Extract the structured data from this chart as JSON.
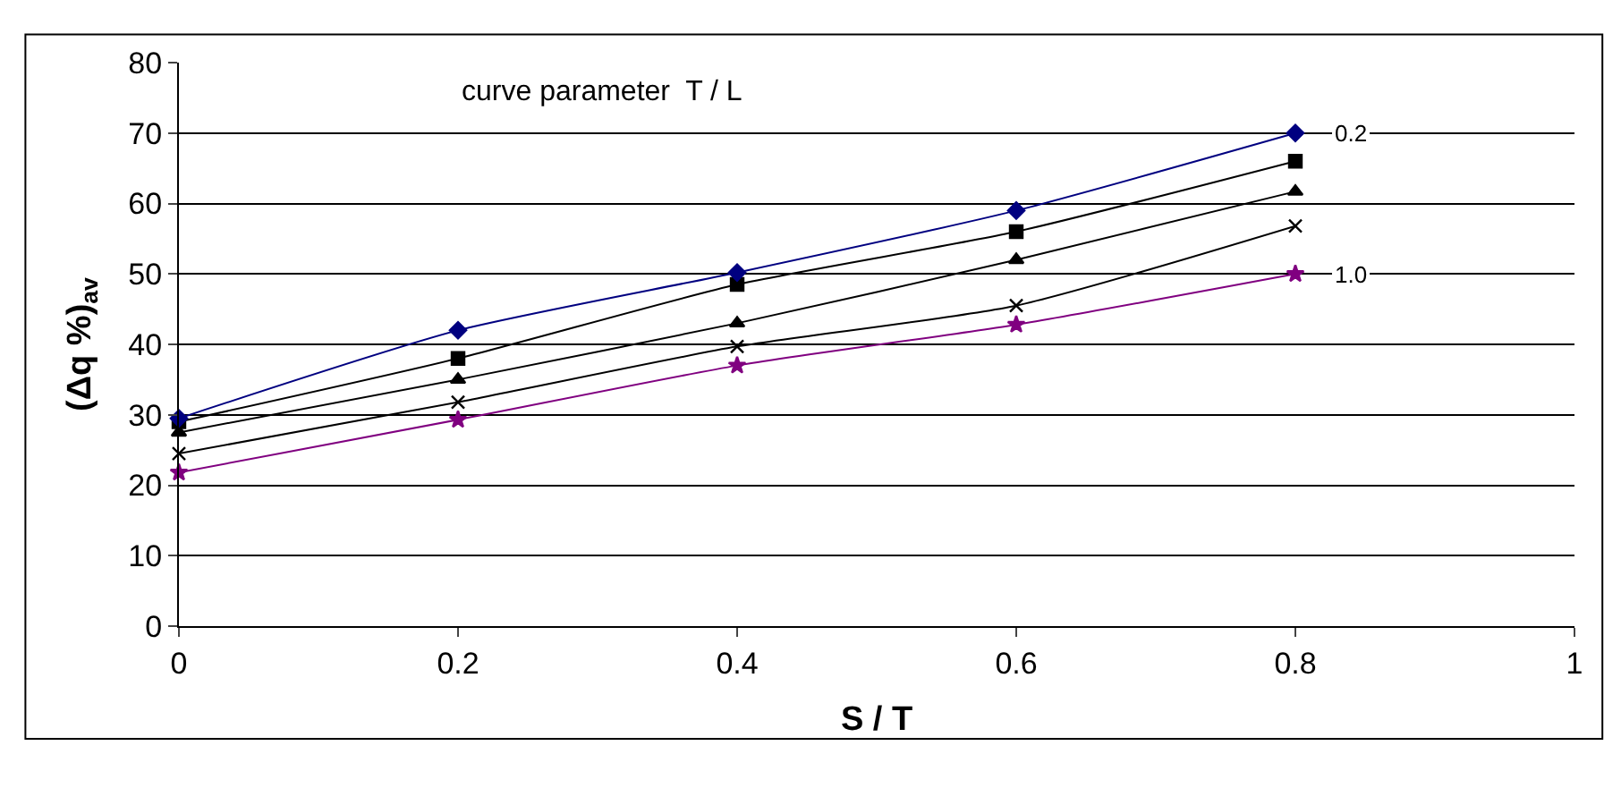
{
  "chart_data": {
    "type": "line",
    "xlabel": "S / T",
    "ylabel": "(Δq %)$_{av}$",
    "x": [
      0,
      0.2,
      0.4,
      0.6,
      0.8
    ],
    "series": [
      {
        "color": "#000080",
        "marker": "diamond",
        "values": [
          29.5,
          42,
          50.2,
          59,
          70
        ]
      },
      {
        "color": "#000000",
        "marker": "square",
        "values": [
          29,
          38,
          48.5,
          56,
          66
        ]
      },
      {
        "color": "#000000",
        "marker": "triangle",
        "values": [
          27.5,
          35,
          43,
          52,
          61.7
        ]
      },
      {
        "color": "#000000",
        "marker": "cross",
        "values": [
          24.5,
          31.8,
          39.7,
          45.5,
          56.8
        ]
      },
      {
        "color": "#800080",
        "marker": "star",
        "values": [
          21.8,
          29.3,
          37,
          42.8,
          50
        ]
      }
    ],
    "annotations": [
      "curve parameter  T / L",
      {
        "text": "0.2",
        "x": 0.84,
        "y": 70
      },
      {
        "text": "1.0",
        "x": 0.84,
        "y": 50
      }
    ],
    "xlim": [
      0,
      1
    ],
    "xticks": [
      0,
      0.2,
      0.4,
      0.6,
      0.8,
      1
    ],
    "ylim": [
      0,
      80
    ],
    "yticks": [
      0,
      10,
      20,
      30,
      40,
      50,
      60,
      70,
      80
    ],
    "grid": "y",
    "line_style": "solid"
  }
}
